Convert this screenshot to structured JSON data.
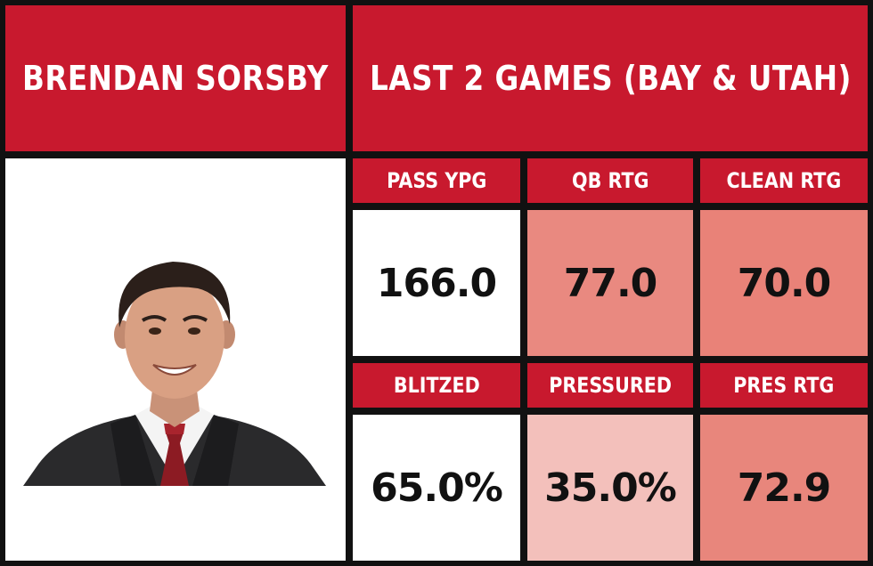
{
  "player": {
    "name": "BRENDAN SORSBY"
  },
  "header": {
    "title": "LAST 2 GAMES (BAY & UTAH)"
  },
  "stats_row1": [
    {
      "label": "PASS YPG",
      "value": "166.0",
      "bg": "#ffffff"
    },
    {
      "label": "QB RTG",
      "value": "77.0",
      "bg": "#e98980"
    },
    {
      "label": "CLEAN RTG",
      "value": "70.0",
      "bg": "#e98278"
    }
  ],
  "stats_row2": [
    {
      "label": "BLITZED",
      "value": "65.0%",
      "bg": "#ffffff"
    },
    {
      "label": "PRESSURED",
      "value": "35.0%",
      "bg": "#f3c0bb"
    },
    {
      "label": "PRES RTG",
      "value": "72.9",
      "bg": "#e8867c"
    }
  ],
  "colors": {
    "accent": "#c8192e",
    "border": "#111111"
  }
}
